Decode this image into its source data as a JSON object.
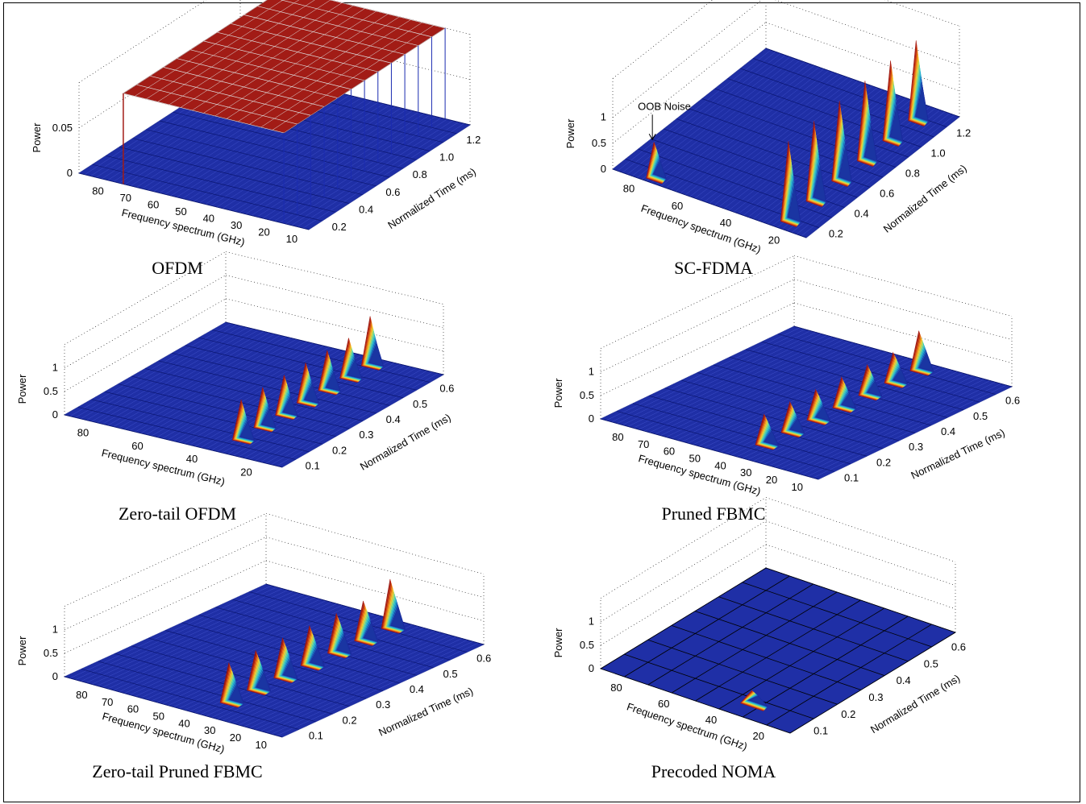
{
  "colors": {
    "ofdm_surface": "#a21c16",
    "base_surface": "#1f2fa6",
    "peak_gradient": [
      "#1a2b9e",
      "#1fa0d8",
      "#35d6c8",
      "#f2e437",
      "#f59a23",
      "#c4210f",
      "#7a0c0c"
    ]
  },
  "chart_data": [
    {
      "type": "surface",
      "caption": "OFDM",
      "xlabel": "Frequency spectrum (GHz)",
      "ylabel": "Normalized Time (ms)",
      "zlabel": "Power",
      "x_ticks": [
        "80",
        "70",
        "60",
        "50",
        "40",
        "30",
        "20",
        "10"
      ],
      "y_ticks": [
        "0.2",
        "0.4",
        "0.6",
        "0.8",
        "1.0",
        "1.2"
      ],
      "z_ticks": [
        "0",
        "0.05"
      ],
      "xlim": [
        5,
        88
      ],
      "ylim": [
        0.1,
        1.3
      ],
      "zlim": [
        0,
        0.08
      ],
      "band": [
        14,
        72
      ],
      "band_power": 0.0625,
      "peaks": []
    },
    {
      "type": "surface",
      "caption": "SC-FDMA",
      "xlabel": "Frequency spectrum (GHz)",
      "ylabel": "Normalized Time (ms)",
      "zlabel": "Power",
      "x_ticks": [
        "80",
        "60",
        "40",
        "20"
      ],
      "y_ticks": [
        "0.2",
        "0.4",
        "0.6",
        "0.8",
        "1.0",
        "1.2"
      ],
      "z_ticks": [
        "0",
        "0.5",
        "1"
      ],
      "xlim": [
        8,
        88
      ],
      "ylim": [
        0.1,
        1.3
      ],
      "zlim": [
        0,
        1.4
      ],
      "annotation": "OOB Noise",
      "peaks": [
        {
          "x": 18,
          "y": 0.15,
          "z": 1.6
        },
        {
          "x": 18,
          "y": 0.35,
          "z": 1.6
        },
        {
          "x": 18,
          "y": 0.55,
          "z": 1.6
        },
        {
          "x": 18,
          "y": 0.75,
          "z": 1.6
        },
        {
          "x": 18,
          "y": 0.95,
          "z": 1.6
        },
        {
          "x": 18,
          "y": 1.15,
          "z": 1.6
        },
        {
          "x": 72,
          "y": 0.12,
          "z": 0.75
        }
      ]
    },
    {
      "type": "surface",
      "caption": "Zero-tail OFDM",
      "xlabel": "Frequency spectrum (GHz)",
      "ylabel": "Normalized Time (ms)",
      "zlabel": "Power",
      "x_ticks": [
        "80",
        "60",
        "40",
        "20"
      ],
      "y_ticks": [
        "0.1",
        "0.2",
        "0.3",
        "0.4",
        "0.5",
        "0.6"
      ],
      "z_ticks": [
        "0",
        "0.5",
        "1"
      ],
      "xlim": [
        8,
        88
      ],
      "ylim": [
        0.05,
        0.65
      ],
      "zlim": [
        0,
        1.2
      ],
      "peaks": [
        {
          "x": 30,
          "y": 0.12,
          "z": 0.9
        },
        {
          "x": 30,
          "y": 0.2,
          "z": 0.9
        },
        {
          "x": 30,
          "y": 0.28,
          "z": 0.9
        },
        {
          "x": 30,
          "y": 0.36,
          "z": 0.9
        },
        {
          "x": 30,
          "y": 0.44,
          "z": 0.9
        },
        {
          "x": 30,
          "y": 0.52,
          "z": 0.9
        },
        {
          "x": 30,
          "y": 0.6,
          "z": 1.1
        }
      ]
    },
    {
      "type": "surface",
      "caption": "Pruned FBMC",
      "xlabel": "Frequency spectrum (GHz)",
      "ylabel": "Normalized Time (ms)",
      "zlabel": "Power",
      "x_ticks": [
        "80",
        "70",
        "60",
        "50",
        "40",
        "30",
        "20",
        "10"
      ],
      "y_ticks": [
        "0.1",
        "0.2",
        "0.3",
        "0.4",
        "0.5",
        "0.6"
      ],
      "z_ticks": [
        "0",
        "0.5",
        "1"
      ],
      "xlim": [
        3,
        88
      ],
      "ylim": [
        0.05,
        0.65
      ],
      "zlim": [
        0,
        1.2
      ],
      "peaks": [
        {
          "x": 33,
          "y": 0.12,
          "z": 0.7
        },
        {
          "x": 33,
          "y": 0.2,
          "z": 0.7
        },
        {
          "x": 33,
          "y": 0.28,
          "z": 0.7
        },
        {
          "x": 33,
          "y": 0.36,
          "z": 0.7
        },
        {
          "x": 33,
          "y": 0.44,
          "z": 0.7
        },
        {
          "x": 33,
          "y": 0.52,
          "z": 0.7
        },
        {
          "x": 33,
          "y": 0.6,
          "z": 0.9
        }
      ]
    },
    {
      "type": "surface",
      "caption": "Zero-tail Pruned FBMC",
      "xlabel": "Frequency spectrum (GHz)",
      "ylabel": "Normalized Time (ms)",
      "zlabel": "Power",
      "x_ticks": [
        "80",
        "70",
        "60",
        "50",
        "40",
        "30",
        "20",
        "10"
      ],
      "y_ticks": [
        "0.1",
        "0.2",
        "0.3",
        "0.4",
        "0.5",
        "0.6"
      ],
      "z_ticks": [
        "0",
        "0.5",
        "1"
      ],
      "xlim": [
        3,
        88
      ],
      "ylim": [
        0.05,
        0.65
      ],
      "zlim": [
        0,
        1.2
      ],
      "peaks": [
        {
          "x": 33,
          "y": 0.12,
          "z": 0.9
        },
        {
          "x": 33,
          "y": 0.2,
          "z": 0.9
        },
        {
          "x": 33,
          "y": 0.28,
          "z": 0.9
        },
        {
          "x": 33,
          "y": 0.36,
          "z": 0.9
        },
        {
          "x": 33,
          "y": 0.44,
          "z": 0.9
        },
        {
          "x": 33,
          "y": 0.52,
          "z": 0.9
        },
        {
          "x": 33,
          "y": 0.6,
          "z": 1.1
        }
      ]
    },
    {
      "type": "surface",
      "caption": "Precoded NOMA",
      "xlabel": "Frequency spectrum (GHz)",
      "ylabel": "Normalized Time (ms)",
      "zlabel": "Power",
      "x_ticks": [
        "80",
        "60",
        "40",
        "20"
      ],
      "y_ticks": [
        "0.1",
        "0.2",
        "0.3",
        "0.4",
        "0.5",
        "0.6"
      ],
      "z_ticks": [
        "0",
        "0.5",
        "1"
      ],
      "xlim": [
        8,
        88
      ],
      "ylim": [
        0.05,
        0.65
      ],
      "zlim": [
        0,
        1.2
      ],
      "coarse": true,
      "peaks": [
        {
          "x": 30,
          "y": 0.1,
          "z": 0.35
        }
      ]
    }
  ]
}
